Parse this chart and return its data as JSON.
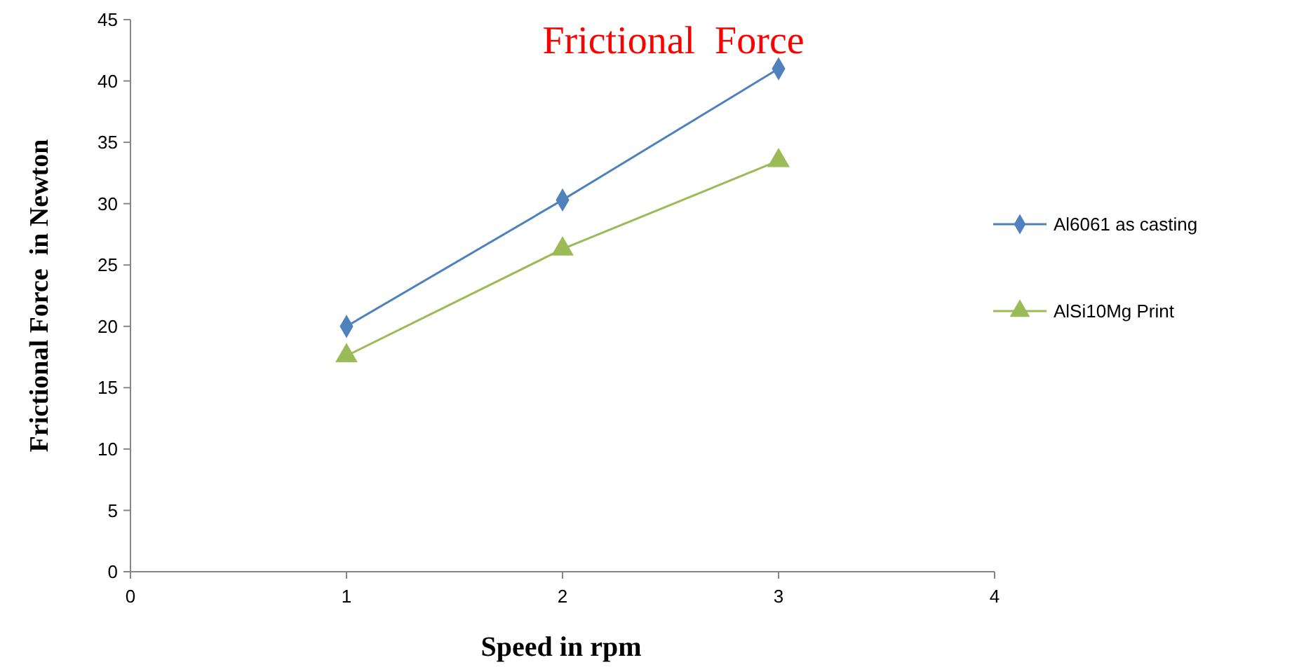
{
  "chart_data": {
    "type": "line",
    "title": "Frictional  Force",
    "xlabel": "Speed in rpm",
    "ylabel": "Frictional Force  in Newton",
    "x": [
      1,
      2,
      3
    ],
    "series": [
      {
        "name": "Al6061 as casting",
        "color": "#4f81bd",
        "marker": "diamond",
        "values": [
          20,
          30.3,
          41
        ]
      },
      {
        "name": "AlSi10Mg Print",
        "color": "#9bbb59",
        "marker": "triangle",
        "values": [
          17.6,
          26.3,
          33.5
        ]
      }
    ],
    "xlim": [
      0,
      4
    ],
    "xticks": [
      0,
      1,
      2,
      3,
      4
    ],
    "ylim": [
      0,
      45
    ],
    "yticks": [
      0,
      5,
      10,
      15,
      20,
      25,
      30,
      35,
      40,
      45
    ],
    "grid": false,
    "legend": "right"
  }
}
